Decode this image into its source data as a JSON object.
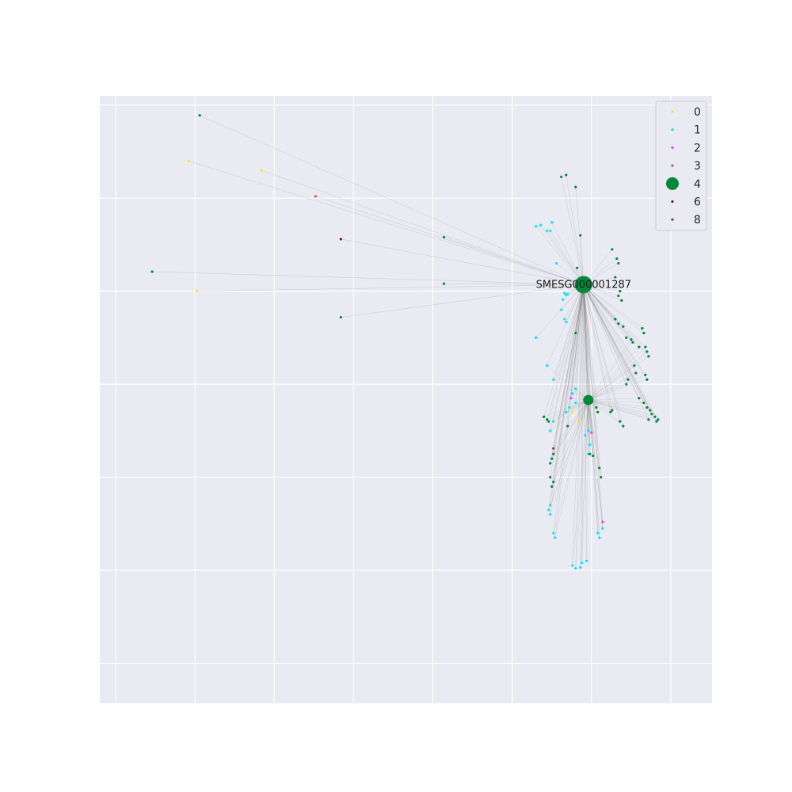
{
  "chart_data": {
    "type": "scatter",
    "title": "",
    "xlabel": "",
    "ylabel": "",
    "xlim": [
      -0.1,
      3.76
    ],
    "ylim": [
      -0.93,
      5.6
    ],
    "grid": true,
    "legend_placement": "top-right",
    "hub_label": "SMESG000001287",
    "colors": {
      "background": "#eaeaf2",
      "grid": "#ffffff",
      "edge": "#7f7f7f",
      "class_0": "#ffe119",
      "class_1": "#00e5ff",
      "class_2": "#ff33ff",
      "class_3": "#e8503a",
      "class_4": "#00883a",
      "class_6": "#7f0f3e",
      "class_8": "#8b3a2f"
    },
    "legend": [
      "0",
      "1",
      "2",
      "3",
      "4",
      "6",
      "8"
    ],
    "hubs": [
      {
        "x": 2.95,
        "y": 3.57,
        "class": "4",
        "size": "large",
        "labeled": true
      },
      {
        "x": 2.98,
        "y": 2.33,
        "class": "4",
        "size": "medium",
        "labeled": false
      }
    ],
    "series": [
      {
        "name": "0",
        "color": "#ffe119",
        "points": [
          [
            0.46,
            4.9
          ],
          [
            0.92,
            4.8
          ],
          [
            0.51,
            3.5
          ],
          [
            2.92,
            2.1
          ],
          [
            2.88,
            2.2
          ]
        ]
      },
      {
        "name": "1",
        "color": "#00e5ff",
        "points": [
          [
            2.65,
            4.2
          ],
          [
            2.68,
            4.21
          ],
          [
            2.72,
            4.15
          ],
          [
            2.74,
            4.15
          ],
          [
            2.75,
            4.24
          ],
          [
            2.78,
            3.8
          ],
          [
            2.83,
            3.48
          ],
          [
            2.84,
            3.46
          ],
          [
            2.85,
            3.47
          ],
          [
            2.82,
            3.41
          ],
          [
            2.81,
            3.3
          ],
          [
            2.83,
            3.2
          ],
          [
            2.84,
            3.17
          ],
          [
            2.65,
            3.0
          ],
          [
            2.72,
            2.7
          ],
          [
            2.76,
            2.55
          ],
          [
            2.9,
            2.45
          ],
          [
            2.88,
            2.4
          ],
          [
            2.9,
            2.3
          ],
          [
            2.86,
            2.25
          ],
          [
            2.84,
            2.2
          ],
          [
            2.76,
            2.1
          ],
          [
            2.74,
            2.0
          ],
          [
            2.98,
            2.0
          ],
          [
            2.96,
            1.95
          ],
          [
            2.99,
            1.85
          ],
          [
            2.98,
            1.75
          ],
          [
            2.74,
            1.2
          ],
          [
            2.73,
            1.15
          ],
          [
            2.74,
            1.1
          ],
          [
            2.76,
            0.9
          ],
          [
            2.77,
            0.85
          ],
          [
            2.88,
            0.55
          ],
          [
            2.9,
            0.52
          ],
          [
            2.93,
            0.53
          ],
          [
            2.94,
            0.58
          ],
          [
            2.97,
            0.6
          ],
          [
            3.05,
            0.85
          ],
          [
            3.04,
            0.9
          ],
          [
            3.07,
            0.95
          ]
        ]
      },
      {
        "name": "2",
        "color": "#ff33ff",
        "points": [
          [
            3.07,
            1.02
          ],
          [
            2.87,
            2.35
          ],
          [
            3.0,
            1.98
          ]
        ]
      },
      {
        "name": "3",
        "color": "#e8503a",
        "points": [
          [
            1.26,
            4.52
          ]
        ]
      },
      {
        "name": "4",
        "color": "#00883a",
        "points": [
          [
            0.53,
            5.39
          ],
          [
            0.23,
            3.71
          ],
          [
            1.42,
            3.22
          ],
          [
            2.07,
            4.08
          ],
          [
            2.07,
            3.58
          ],
          [
            2.81,
            4.73
          ],
          [
            2.84,
            4.75
          ],
          [
            2.9,
            4.62
          ],
          [
            2.93,
            4.1
          ],
          [
            2.91,
            3.75
          ],
          [
            2.9,
            3.05
          ],
          [
            3.13,
            3.95
          ],
          [
            3.16,
            3.85
          ],
          [
            3.17,
            3.8
          ],
          [
            3.15,
            3.65
          ],
          [
            3.18,
            3.5
          ],
          [
            3.17,
            3.45
          ],
          [
            3.19,
            3.4
          ],
          [
            3.15,
            3.2
          ],
          [
            3.17,
            3.15
          ],
          [
            3.2,
            3.12
          ],
          [
            3.22,
            3.0
          ],
          [
            3.25,
            2.98
          ],
          [
            3.26,
            2.95
          ],
          [
            3.3,
            2.9
          ],
          [
            3.32,
            3.1
          ],
          [
            3.33,
            3.05
          ],
          [
            3.34,
            2.9
          ],
          [
            3.35,
            2.85
          ],
          [
            3.36,
            2.8
          ],
          [
            3.27,
            2.7
          ],
          [
            3.28,
            2.62
          ],
          [
            3.23,
            2.55
          ],
          [
            3.22,
            2.5
          ],
          [
            3.34,
            2.6
          ],
          [
            3.35,
            2.55
          ],
          [
            3.3,
            2.35
          ],
          [
            3.33,
            2.3
          ],
          [
            3.35,
            2.25
          ],
          [
            3.37,
            2.22
          ],
          [
            3.38,
            2.18
          ],
          [
            3.4,
            2.15
          ],
          [
            3.36,
            2.12
          ],
          [
            3.41,
            2.1
          ],
          [
            3.42,
            2.12
          ],
          [
            3.12,
            2.2
          ],
          [
            3.13,
            2.22
          ],
          [
            3.18,
            2.1
          ],
          [
            3.2,
            2.05
          ],
          [
            2.7,
            2.15
          ],
          [
            2.72,
            2.12
          ],
          [
            2.73,
            2.1
          ],
          [
            2.85,
            2.05
          ],
          [
            2.74,
            1.65
          ],
          [
            2.75,
            1.7
          ],
          [
            2.76,
            1.75
          ],
          [
            2.74,
            1.5
          ],
          [
            2.76,
            1.45
          ],
          [
            2.75,
            1.4
          ],
          [
            2.99,
            1.75
          ],
          [
            3.01,
            1.73
          ],
          [
            3.05,
            1.6
          ],
          [
            3.06,
            1.5
          ],
          [
            3.03,
            2.25
          ],
          [
            3.04,
            2.2
          ]
        ]
      },
      {
        "name": "6",
        "color": "#7f0f3e",
        "points": [
          [
            1.42,
            4.06
          ]
        ]
      },
      {
        "name": "8",
        "color": "#8b3a2f",
        "points": [
          [
            2.76,
            1.81
          ]
        ]
      }
    ]
  }
}
